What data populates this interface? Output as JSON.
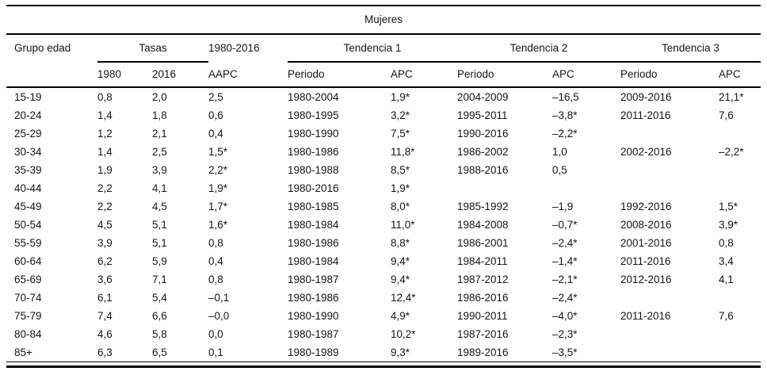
{
  "table": {
    "title": "Mujeres",
    "groups": {
      "grupo_edad": "Grupo edad",
      "tasas": "Tasas",
      "periodo_total": "1980-2016",
      "tendencia1": "Tendencia 1",
      "tendencia2": "Tendencia 2",
      "tendencia3": "Tendencia 3"
    },
    "subheaders": [
      "",
      "1980",
      "2016",
      "AAPC",
      "Periodo",
      "APC",
      "Periodo",
      "APC",
      "Periodo",
      "APC"
    ],
    "rows": [
      [
        "15-19",
        "0,8",
        "2,0",
        "2,5",
        "1980-2004",
        "1,9*",
        "2004-2009",
        "–16,5",
        "2009-2016",
        "21,1*"
      ],
      [
        "20-24",
        "1,4",
        "1,8",
        "0,6",
        "1980-1995",
        "3,2*",
        "1995-2011",
        "–3,8*",
        "2011-2016",
        "7,6"
      ],
      [
        "25-29",
        "1,2",
        "2,1",
        "0,4",
        "1980-1990",
        "7,5*",
        "1990-2016",
        "–2,2*",
        "",
        ""
      ],
      [
        "30-34",
        "1,4",
        "2,5",
        "1,5*",
        "1980-1986",
        "11,8*",
        "1986-2002",
        "1,0",
        "2002-2016",
        "–2,2*"
      ],
      [
        "35-39",
        "1,9",
        "3,9",
        "2,2*",
        "1980-1988",
        "8,5*",
        "1988-2016",
        "0,5",
        "",
        ""
      ],
      [
        "40-44",
        "2,2",
        "4,1",
        "1,9*",
        "1980-2016",
        "1,9*",
        "",
        "",
        "",
        ""
      ],
      [
        "45-49",
        "2,2",
        "4,5",
        "1,7*",
        "1980-1985",
        "8,0*",
        "1985-1992",
        "–1,9",
        "1992-2016",
        "1,5*"
      ],
      [
        "50-54",
        "4,5",
        "5,1",
        "1,6*",
        "1980-1984",
        "11,0*",
        "1984-2008",
        "–0,7*",
        "2008-2016",
        "3,9*"
      ],
      [
        "55-59",
        "3,9",
        "5,1",
        "0,8",
        "1980-1986",
        "8,8*",
        "1986-2001",
        "–2,4*",
        "2001-2016",
        "0,8"
      ],
      [
        "60-64",
        "6,2",
        "5,9",
        "0,4",
        "1980-1984",
        "9,4*",
        "1984-2011",
        "–1,4*",
        "2011-2016",
        "3,4"
      ],
      [
        "65-69",
        "3,6",
        "7,1",
        "0,8",
        "1980-1987",
        "9,4*",
        "1987-2012",
        "–2,1*",
        "2012-2016",
        "4,1"
      ],
      [
        "70-74",
        "6,1",
        "5,4",
        "–0,1",
        "1980-1986",
        "12,4*",
        "1986-2016",
        "–2,4*",
        "",
        ""
      ],
      [
        "75-79",
        "7,4",
        "6,6",
        "–0,0",
        "1980-1990",
        "4,9*",
        "1990-2011",
        "–4,0*",
        "2011-2016",
        "7,6"
      ],
      [
        "80-84",
        "4,6",
        "5,8",
        "0,0",
        "1980-1987",
        "10,2*",
        "1987-2016",
        "–2,3*",
        "",
        ""
      ],
      [
        "85+",
        "6,3",
        "6,5",
        "0,1",
        "1980-1989",
        "9,3*",
        "1989-2016",
        "–3,5*",
        "",
        ""
      ]
    ],
    "colors": {
      "rule": "#000000",
      "text": "#161616",
      "background": "#ffffff"
    }
  }
}
